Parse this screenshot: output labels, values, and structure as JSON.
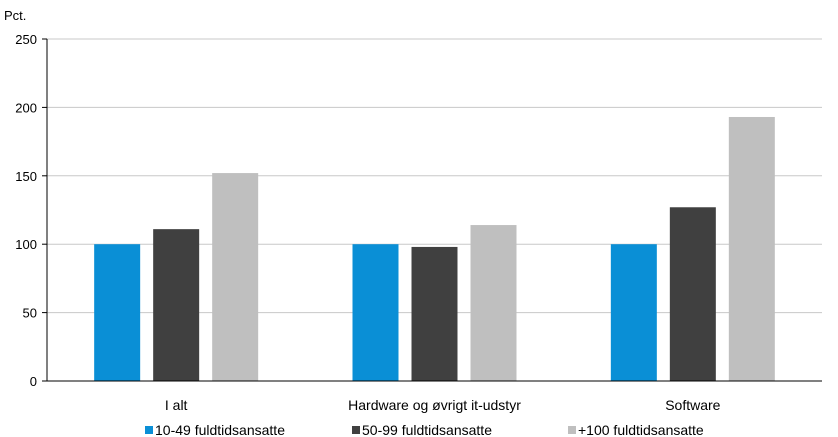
{
  "chart_data": {
    "type": "bar",
    "ylabel": "Pct.",
    "ylim": [
      0,
      250
    ],
    "yticks": [
      0,
      50,
      100,
      150,
      200,
      250
    ],
    "grid": true,
    "legend_position": "bottom",
    "categories": [
      "I alt",
      "Hardware og øvrigt it-udstyr",
      "Software"
    ],
    "series": [
      {
        "name": "10-49 fuldtidsansatte",
        "color": "#0a8fd6",
        "values": [
          100,
          100,
          100
        ]
      },
      {
        "name": "50-99 fuldtidsansatte",
        "color": "#404040",
        "values": [
          111,
          98,
          127
        ]
      },
      {
        "name": "+100 fuldtidsansatte",
        "color": "#bfbfbf",
        "values": [
          152,
          114,
          193
        ]
      }
    ]
  }
}
